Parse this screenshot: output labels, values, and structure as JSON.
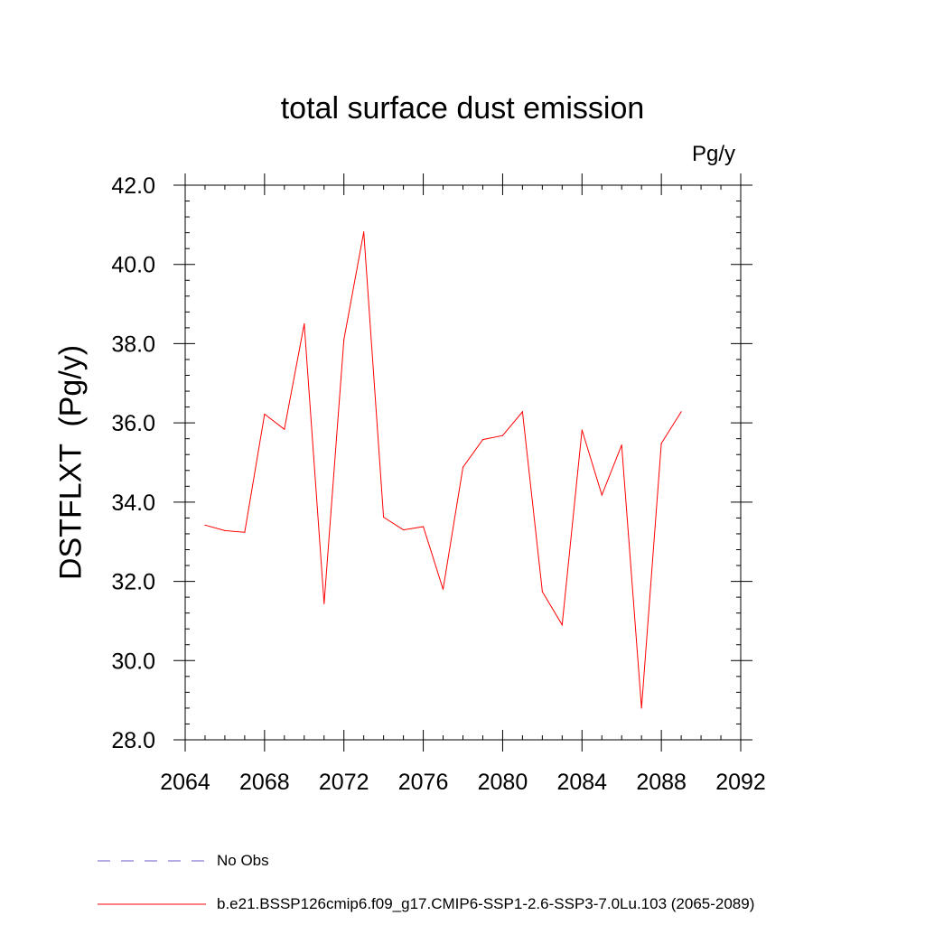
{
  "chart_data": {
    "type": "line",
    "title": "total surface dust emission",
    "units_label": "Pg/y",
    "ylabel": "DSTFLXT  (Pg/y)",
    "xlabel": "",
    "xlim": [
      2064,
      2092
    ],
    "ylim": [
      28.0,
      42.0
    ],
    "x_ticks": [
      2064,
      2068,
      2072,
      2076,
      2080,
      2084,
      2088,
      2092
    ],
    "x_tick_labels": [
      "2064",
      "2068",
      "2072",
      "2076",
      "2080",
      "2084",
      "2088",
      "2092"
    ],
    "y_ticks": [
      28,
      30,
      32,
      34,
      36,
      38,
      40,
      42
    ],
    "y_tick_labels": [
      "28.0",
      "30.0",
      "32.0",
      "34.0",
      "36.0",
      "38.0",
      "40.0",
      "42.0"
    ],
    "grid": false,
    "legend_position": "bottom",
    "series": [
      {
        "name": "b.e21.BSSP126cmip6.f09_g17.CMIP6-SSP1-2.6-SSP3-7.0Lu.103 (2065-2089)",
        "color": "#ff0000",
        "style": "solid",
        "x": [
          2065,
          2066,
          2067,
          2068,
          2069,
          2070,
          2071,
          2072,
          2073,
          2074,
          2075,
          2076,
          2077,
          2078,
          2079,
          2080,
          2081,
          2082,
          2083,
          2084,
          2085,
          2086,
          2087,
          2088,
          2089
        ],
        "y": [
          33.42,
          33.28,
          33.24,
          36.22,
          35.84,
          38.5,
          31.44,
          38.1,
          40.82,
          33.62,
          33.3,
          33.38,
          31.8,
          34.88,
          35.58,
          35.68,
          36.28,
          31.74,
          30.9,
          35.82,
          34.18,
          35.44,
          28.8,
          35.48,
          36.28
        ]
      }
    ],
    "legend": [
      {
        "label": "No Obs",
        "color": "#6a5acd",
        "style": "dashed"
      },
      {
        "label": "b.e21.BSSP126cmip6.f09_g17.CMIP6-SSP1-2.6-SSP3-7.0Lu.103 (2065-2089)",
        "color": "#ff0000",
        "style": "solid"
      }
    ]
  }
}
